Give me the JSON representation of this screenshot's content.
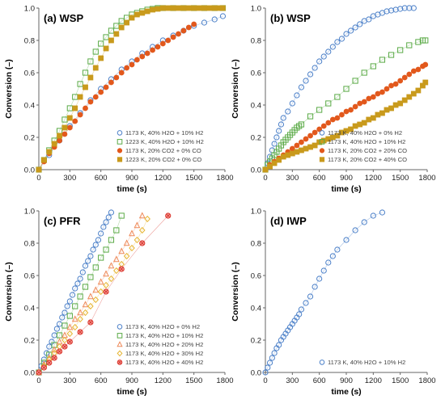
{
  "chart_data": [
    {
      "type": "scatter",
      "title": "(a) WSP",
      "xlabel": "time (s)",
      "ylabel": "Conversion (–)",
      "xlim": [
        0,
        1800
      ],
      "ylim": [
        0,
        1.0
      ],
      "xticks": [
        "0",
        "300",
        "600",
        "900",
        "1200",
        "1500",
        "1800"
      ],
      "yticks": [
        "0.0",
        "0.2",
        "0.4",
        "0.6",
        "0.8",
        "1.0"
      ],
      "legend_position": "bottom-right",
      "grid": false,
      "series": [
        {
          "name": "1173 K, 40% H2O + 10% H2",
          "marker": "circle-open",
          "color": "#4a7fc8",
          "x": [
            0,
            100,
            200,
            300,
            400,
            500,
            600,
            700,
            800,
            900,
            1000,
            1100,
            1200,
            1300,
            1400,
            1500,
            1600,
            1700,
            1780
          ],
          "y": [
            0,
            0.09,
            0.18,
            0.27,
            0.35,
            0.43,
            0.5,
            0.56,
            0.62,
            0.67,
            0.72,
            0.76,
            0.8,
            0.83,
            0.86,
            0.89,
            0.91,
            0.93,
            0.95
          ]
        },
        {
          "name": "1223 K, 40% H2O + 10% H2",
          "marker": "square-open",
          "color": "#5aaa46",
          "x": [
            0,
            50,
            100,
            150,
            200,
            250,
            300,
            350,
            400,
            450,
            500,
            550,
            600,
            650,
            700,
            750,
            800,
            850,
            900,
            950,
            1000,
            1050,
            1100,
            1150,
            1200,
            1300,
            1400,
            1500,
            1600,
            1700,
            1780
          ],
          "y": [
            0,
            0.06,
            0.12,
            0.18,
            0.24,
            0.31,
            0.38,
            0.45,
            0.53,
            0.6,
            0.67,
            0.73,
            0.78,
            0.82,
            0.86,
            0.89,
            0.92,
            0.94,
            0.96,
            0.97,
            0.98,
            0.99,
            0.995,
            1.0,
            1.0,
            1.0,
            1.0,
            1.0,
            1.0,
            1.0,
            1.0
          ]
        },
        {
          "name": "1173 K, 20% CO2 + 0% CO",
          "marker": "circle-filled",
          "color": "#e2581c",
          "x": [
            0,
            50,
            100,
            150,
            200,
            250,
            300,
            350,
            400,
            450,
            500,
            550,
            600,
            650,
            700,
            750,
            800,
            850,
            900,
            950,
            1000,
            1050,
            1100,
            1150,
            1200,
            1250,
            1300,
            1350,
            1400,
            1450,
            1500
          ],
          "y": [
            0,
            0.05,
            0.1,
            0.14,
            0.18,
            0.22,
            0.26,
            0.3,
            0.34,
            0.38,
            0.42,
            0.45,
            0.48,
            0.51,
            0.54,
            0.57,
            0.6,
            0.63,
            0.65,
            0.68,
            0.7,
            0.72,
            0.74,
            0.76,
            0.78,
            0.8,
            0.82,
            0.84,
            0.86,
            0.88,
            0.9
          ]
        },
        {
          "name": "1223 K, 20% CO2 + 0% CO",
          "marker": "square-filled",
          "color": "#c99a1c",
          "x": [
            0,
            50,
            100,
            150,
            200,
            250,
            300,
            350,
            400,
            450,
            500,
            550,
            600,
            650,
            700,
            750,
            800,
            850,
            900,
            950,
            1000,
            1050,
            1100,
            1150,
            1200,
            1250,
            1300,
            1350,
            1400,
            1450,
            1500,
            1550,
            1600,
            1650,
            1700,
            1750,
            1780
          ],
          "y": [
            0,
            0.06,
            0.11,
            0.16,
            0.21,
            0.26,
            0.32,
            0.38,
            0.45,
            0.51,
            0.57,
            0.63,
            0.69,
            0.75,
            0.8,
            0.84,
            0.88,
            0.91,
            0.94,
            0.96,
            0.97,
            0.98,
            0.99,
            0.995,
            1.0,
            1.0,
            1.0,
            1.0,
            1.0,
            1.0,
            1.0,
            1.0,
            1.0,
            1.0,
            1.0,
            1.0,
            1.0
          ]
        }
      ]
    },
    {
      "type": "scatter",
      "title": "(b) WSP",
      "xlabel": "time (s)",
      "ylabel": "Conversion (–)",
      "xlim": [
        0,
        1800
      ],
      "ylim": [
        0,
        1.0
      ],
      "xticks": [
        "0",
        "300",
        "600",
        "900",
        "1200",
        "1500",
        "1800"
      ],
      "yticks": [
        "0.0",
        "0.2",
        "0.4",
        "0.6",
        "0.8",
        "1.0"
      ],
      "legend_position": "bottom-right",
      "grid": false,
      "series": [
        {
          "name": "1173 K, 40% H2O + 0% H2",
          "marker": "circle-open",
          "color": "#4a7fc8",
          "x": [
            0,
            25,
            50,
            75,
            100,
            125,
            150,
            175,
            200,
            250,
            300,
            350,
            400,
            450,
            500,
            550,
            600,
            650,
            700,
            750,
            800,
            850,
            900,
            950,
            1000,
            1050,
            1100,
            1150,
            1200,
            1250,
            1300,
            1350,
            1400,
            1450,
            1500,
            1550,
            1600,
            1650
          ],
          "y": [
            0,
            0.04,
            0.08,
            0.12,
            0.16,
            0.2,
            0.24,
            0.28,
            0.32,
            0.36,
            0.41,
            0.46,
            0.51,
            0.55,
            0.59,
            0.63,
            0.67,
            0.7,
            0.73,
            0.76,
            0.79,
            0.81,
            0.84,
            0.86,
            0.88,
            0.9,
            0.92,
            0.93,
            0.95,
            0.96,
            0.97,
            0.98,
            0.985,
            0.99,
            0.995,
            1.0,
            1.0,
            1.0
          ]
        },
        {
          "name": "1173 K, 40% H2O + 10% H2",
          "marker": "square-open",
          "color": "#5aaa46",
          "x": [
            0,
            25,
            50,
            75,
            100,
            125,
            150,
            175,
            200,
            225,
            250,
            275,
            300,
            325,
            350,
            375,
            400,
            500,
            600,
            700,
            800,
            900,
            1000,
            1100,
            1200,
            1300,
            1400,
            1500,
            1600,
            1700,
            1750,
            1780
          ],
          "y": [
            0,
            0.03,
            0.05,
            0.07,
            0.09,
            0.11,
            0.13,
            0.15,
            0.17,
            0.185,
            0.2,
            0.215,
            0.23,
            0.245,
            0.26,
            0.27,
            0.28,
            0.33,
            0.37,
            0.41,
            0.45,
            0.5,
            0.55,
            0.6,
            0.64,
            0.68,
            0.71,
            0.74,
            0.77,
            0.79,
            0.8,
            0.8
          ]
        },
        {
          "name": "1173 K, 20% CO2 + 20% CO",
          "marker": "circle-filled",
          "color": "#e2581c",
          "x": [
            0,
            50,
            100,
            150,
            200,
            250,
            300,
            350,
            400,
            450,
            500,
            550,
            600,
            650,
            700,
            750,
            800,
            850,
            900,
            950,
            1000,
            1050,
            1100,
            1150,
            1200,
            1250,
            1300,
            1350,
            1400,
            1450,
            1500,
            1550,
            1600,
            1650,
            1700,
            1750,
            1780
          ],
          "y": [
            0,
            0.03,
            0.05,
            0.07,
            0.09,
            0.11,
            0.13,
            0.15,
            0.17,
            0.19,
            0.21,
            0.23,
            0.25,
            0.27,
            0.29,
            0.31,
            0.32,
            0.34,
            0.36,
            0.37,
            0.39,
            0.41,
            0.42,
            0.44,
            0.45,
            0.47,
            0.48,
            0.5,
            0.52,
            0.53,
            0.55,
            0.57,
            0.59,
            0.61,
            0.62,
            0.64,
            0.65
          ]
        },
        {
          "name": "1173 K, 20% CO2 + 40% CO",
          "marker": "square-filled",
          "color": "#c99a1c",
          "x": [
            0,
            50,
            100,
            150,
            200,
            250,
            300,
            350,
            400,
            450,
            500,
            550,
            600,
            650,
            700,
            750,
            800,
            850,
            900,
            950,
            1000,
            1050,
            1100,
            1150,
            1200,
            1250,
            1300,
            1350,
            1400,
            1450,
            1500,
            1550,
            1600,
            1650,
            1700,
            1750,
            1780
          ],
          "y": [
            0,
            0.02,
            0.04,
            0.06,
            0.08,
            0.09,
            0.1,
            0.11,
            0.12,
            0.13,
            0.14,
            0.15,
            0.17,
            0.18,
            0.19,
            0.2,
            0.21,
            0.23,
            0.24,
            0.25,
            0.27,
            0.28,
            0.29,
            0.31,
            0.32,
            0.34,
            0.35,
            0.37,
            0.38,
            0.4,
            0.41,
            0.43,
            0.45,
            0.47,
            0.49,
            0.52,
            0.54
          ]
        }
      ]
    },
    {
      "type": "scatter",
      "title": "(c) PFR",
      "xlabel": "time (s)",
      "ylabel": "Conversion (–)",
      "xlim": [
        0,
        1800
      ],
      "ylim": [
        0,
        1.0
      ],
      "xticks": [
        "0",
        "300",
        "600",
        "900",
        "1200",
        "1500",
        "1800"
      ],
      "yticks": [
        "0.0",
        "0.2",
        "0.4",
        "0.6",
        "0.8",
        "1.0"
      ],
      "legend_position": "bottom-right",
      "grid": false,
      "series": [
        {
          "name": "1173 K, 40% H2O + 0% H2",
          "marker": "circle-open",
          "color": "#4a7fc8",
          "x": [
            0,
            25,
            50,
            75,
            100,
            125,
            150,
            175,
            200,
            225,
            250,
            275,
            300,
            325,
            350,
            375,
            400,
            425,
            450,
            475,
            500,
            525,
            550,
            575,
            600,
            625,
            650,
            675,
            700
          ],
          "y": [
            0,
            0.04,
            0.08,
            0.12,
            0.16,
            0.19,
            0.23,
            0.27,
            0.3,
            0.34,
            0.37,
            0.41,
            0.44,
            0.48,
            0.52,
            0.55,
            0.58,
            0.62,
            0.66,
            0.69,
            0.72,
            0.76,
            0.79,
            0.82,
            0.86,
            0.9,
            0.93,
            0.96,
            0.99
          ]
        },
        {
          "name": "1173 K, 40% H2O + 10% H2",
          "marker": "square-open",
          "color": "#5aaa46",
          "x": [
            0,
            50,
            100,
            150,
            200,
            250,
            300,
            350,
            400,
            450,
            500,
            550,
            600,
            650,
            700,
            750,
            800
          ],
          "y": [
            0,
            0.06,
            0.11,
            0.17,
            0.23,
            0.29,
            0.35,
            0.41,
            0.47,
            0.53,
            0.59,
            0.65,
            0.71,
            0.76,
            0.82,
            0.88,
            0.97
          ]
        },
        {
          "name": "1173 K, 40% H2O + 20% H2",
          "marker": "triangle-open",
          "color": "#ee8a5a",
          "x": [
            0,
            50,
            100,
            150,
            200,
            250,
            300,
            350,
            400,
            450,
            500,
            550,
            600,
            650,
            700,
            750,
            800,
            850,
            900,
            950,
            1000
          ],
          "y": [
            0,
            0.05,
            0.09,
            0.14,
            0.19,
            0.23,
            0.28,
            0.33,
            0.37,
            0.42,
            0.47,
            0.51,
            0.56,
            0.61,
            0.66,
            0.7,
            0.75,
            0.8,
            0.86,
            0.91,
            0.97
          ]
        },
        {
          "name": "1173 K, 40% H2O + 30% H2",
          "marker": "diamond-open",
          "color": "#e6b430",
          "x": [
            0,
            50,
            100,
            150,
            200,
            250,
            300,
            350,
            400,
            450,
            500,
            550,
            600,
            650,
            700,
            750,
            800,
            850,
            900,
            950,
            1000,
            1050
          ],
          "y": [
            0,
            0.04,
            0.08,
            0.12,
            0.16,
            0.2,
            0.24,
            0.28,
            0.33,
            0.37,
            0.41,
            0.45,
            0.5,
            0.54,
            0.58,
            0.63,
            0.67,
            0.72,
            0.77,
            0.82,
            0.88,
            0.95
          ]
        },
        {
          "name": "1173 K, 40% H2O + 40% H2",
          "marker": "circle-x",
          "color": "#d9322a",
          "x": [
            0,
            50,
            100,
            150,
            200,
            250,
            300,
            400,
            500,
            650,
            800,
            1000,
            1250
          ],
          "y": [
            0,
            0.03,
            0.06,
            0.09,
            0.13,
            0.16,
            0.19,
            0.25,
            0.31,
            0.5,
            0.64,
            0.8,
            0.97
          ]
        }
      ]
    },
    {
      "type": "scatter",
      "title": "(d) IWP",
      "xlabel": "time (s)",
      "ylabel": "Conversion (–)",
      "xlim": [
        0,
        1800
      ],
      "ylim": [
        0,
        1.0
      ],
      "xticks": [
        "0",
        "300",
        "600",
        "900",
        "1200",
        "1500",
        "1800"
      ],
      "yticks": [
        "0.0",
        "0.2",
        "0.4",
        "0.6",
        "0.8",
        "1.0"
      ],
      "legend_position": "bottom-right",
      "grid": false,
      "series": [
        {
          "name": "1173 K, 40% H2O + 10% H2",
          "marker": "circle-open",
          "color": "#4a7fc8",
          "x": [
            0,
            25,
            50,
            75,
            100,
            125,
            150,
            175,
            200,
            225,
            250,
            275,
            300,
            325,
            350,
            375,
            400,
            450,
            500,
            550,
            600,
            650,
            700,
            750,
            800,
            900,
            1000,
            1100,
            1200,
            1300
          ],
          "y": [
            0,
            0.03,
            0.06,
            0.09,
            0.12,
            0.15,
            0.17,
            0.2,
            0.22,
            0.24,
            0.26,
            0.28,
            0.3,
            0.32,
            0.34,
            0.36,
            0.39,
            0.43,
            0.47,
            0.53,
            0.58,
            0.63,
            0.68,
            0.72,
            0.76,
            0.82,
            0.88,
            0.93,
            0.97,
            0.99
          ]
        }
      ]
    }
  ]
}
